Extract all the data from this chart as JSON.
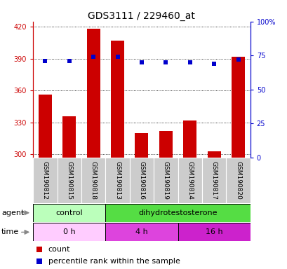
{
  "title": "GDS3111 / 229460_at",
  "samples": [
    "GSM190812",
    "GSM190815",
    "GSM190818",
    "GSM190813",
    "GSM190816",
    "GSM190819",
    "GSM190814",
    "GSM190817",
    "GSM190820"
  ],
  "counts": [
    356,
    336,
    418,
    407,
    320,
    322,
    332,
    303,
    392
  ],
  "percentiles": [
    71,
    71,
    74,
    74,
    70,
    70,
    70,
    69,
    72
  ],
  "ymin": 297,
  "ymax": 425,
  "yticks": [
    300,
    330,
    360,
    390,
    420
  ],
  "right_yticks": [
    0,
    25,
    50,
    75,
    100
  ],
  "bar_color": "#cc0000",
  "dot_color": "#0000cc",
  "agent_groups": [
    {
      "label": "control",
      "start": 0,
      "end": 3,
      "color": "#bbffbb"
    },
    {
      "label": "dihydrotestosterone",
      "start": 3,
      "end": 9,
      "color": "#55dd44"
    }
  ],
  "time_groups": [
    {
      "label": "0 h",
      "start": 0,
      "end": 3,
      "color": "#ffccff"
    },
    {
      "label": "4 h",
      "start": 3,
      "end": 6,
      "color": "#dd44dd"
    },
    {
      "label": "16 h",
      "start": 6,
      "end": 9,
      "color": "#cc22cc"
    }
  ],
  "bar_width": 0.55,
  "title_fontsize": 10,
  "sample_fontsize": 6.5,
  "label_fontsize": 8,
  "tick_fontsize": 7
}
